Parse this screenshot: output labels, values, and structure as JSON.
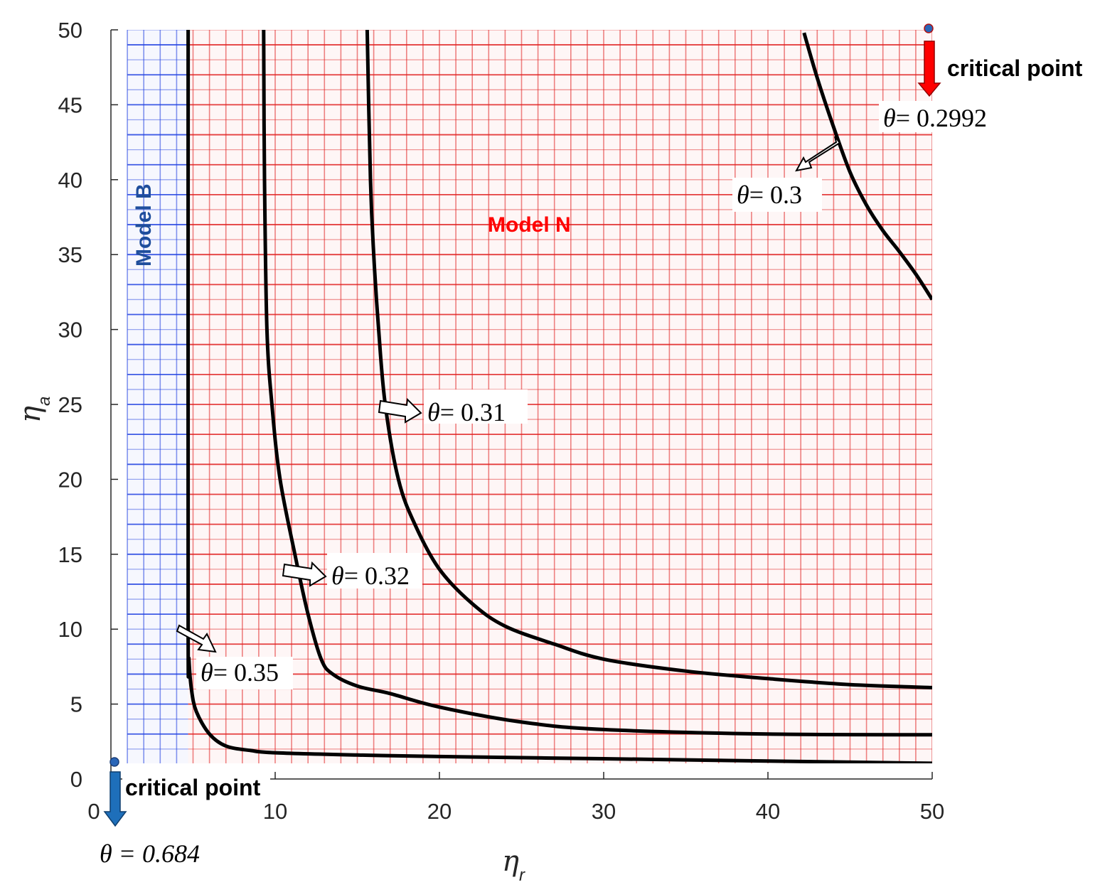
{
  "chart_data": {
    "type": "line",
    "xlabel": "η",
    "xlabel_sub": "r",
    "ylabel": "η",
    "ylabel_sub": "a",
    "xlim": [
      0,
      50
    ],
    "ylim": [
      0,
      50
    ],
    "xticks": [
      "0",
      "10",
      "20",
      "30",
      "40",
      "50"
    ],
    "yticks": [
      "0",
      "5",
      "10",
      "15",
      "20",
      "25",
      "30",
      "35",
      "40",
      "45",
      "50"
    ],
    "regions": [
      {
        "name": "Model B",
        "color": "#1f3fe0",
        "label_color": "#1f4e9c",
        "x_range": [
          1,
          4.7
        ]
      },
      {
        "name": "Model N",
        "color": "#e01f1f",
        "label_color": "#ff0000",
        "x_range": [
          4.7,
          50
        ]
      }
    ],
    "series": [
      {
        "name": "θ = 0.35",
        "x": [
          4.7,
          4.7,
          4.75,
          4.9,
          5.2,
          6.0,
          7.0,
          8.5,
          10,
          15,
          20,
          30,
          40,
          50
        ],
        "y": [
          50,
          10.5,
          8,
          6,
          4.5,
          3,
          2.2,
          1.9,
          1.75,
          1.6,
          1.5,
          1.35,
          1.2,
          1.05
        ]
      },
      {
        "name": "θ = 0.32",
        "x": [
          9.3,
          9.35,
          9.5,
          9.8,
          10.3,
          11.2,
          12,
          12.8,
          13.5,
          15,
          17,
          20,
          25,
          30,
          40,
          50
        ],
        "y": [
          50,
          40,
          30,
          25,
          20,
          15,
          11,
          8,
          7,
          6.2,
          5.7,
          4.8,
          3.8,
          3.3,
          3.0,
          2.95
        ]
      },
      {
        "name": "θ = 0.31",
        "x": [
          15.6,
          15.8,
          16,
          16.3,
          16.7,
          17.5,
          18.5,
          20,
          22,
          24,
          27,
          30,
          35,
          40,
          45,
          50
        ],
        "y": [
          50,
          40,
          35,
          30,
          25,
          20,
          17,
          14,
          11.7,
          10.2,
          9,
          8,
          7.2,
          6.7,
          6.3,
          6.1
        ]
      },
      {
        "name": "θ = 0.3",
        "x": [
          42.2,
          43,
          44,
          45,
          46,
          47,
          48,
          49,
          50
        ],
        "y": [
          49.8,
          46.8,
          43.5,
          40.5,
          38.3,
          36.6,
          35.2,
          33.7,
          32
        ]
      }
    ],
    "critical_points": [
      {
        "label": "critical point",
        "theta_label": "θ = 0.684",
        "x": 0,
        "y": 1,
        "arrow_color": "#1e6fba"
      },
      {
        "label": "critical point",
        "theta_label": "θ = 0.2992",
        "x": 50,
        "y": 50.2,
        "arrow_color": "#ff0000"
      }
    ],
    "annotations": [
      {
        "theta": "θ",
        "value": "= 0.3",
        "points_to": [
          44.3,
          42.6
        ]
      },
      {
        "theta": "θ",
        "value": "= 0.31",
        "points_to": [
          17,
          25
        ]
      },
      {
        "theta": "θ",
        "value": "= 0.32",
        "points_to": [
          11.3,
          14
        ]
      },
      {
        "theta": "θ",
        "value": "= 0.35",
        "points_to": [
          4.7,
          10
        ]
      },
      {
        "theta": "θ",
        "value": "= 0.2992",
        "points_to": [
          50,
          50
        ]
      }
    ]
  }
}
